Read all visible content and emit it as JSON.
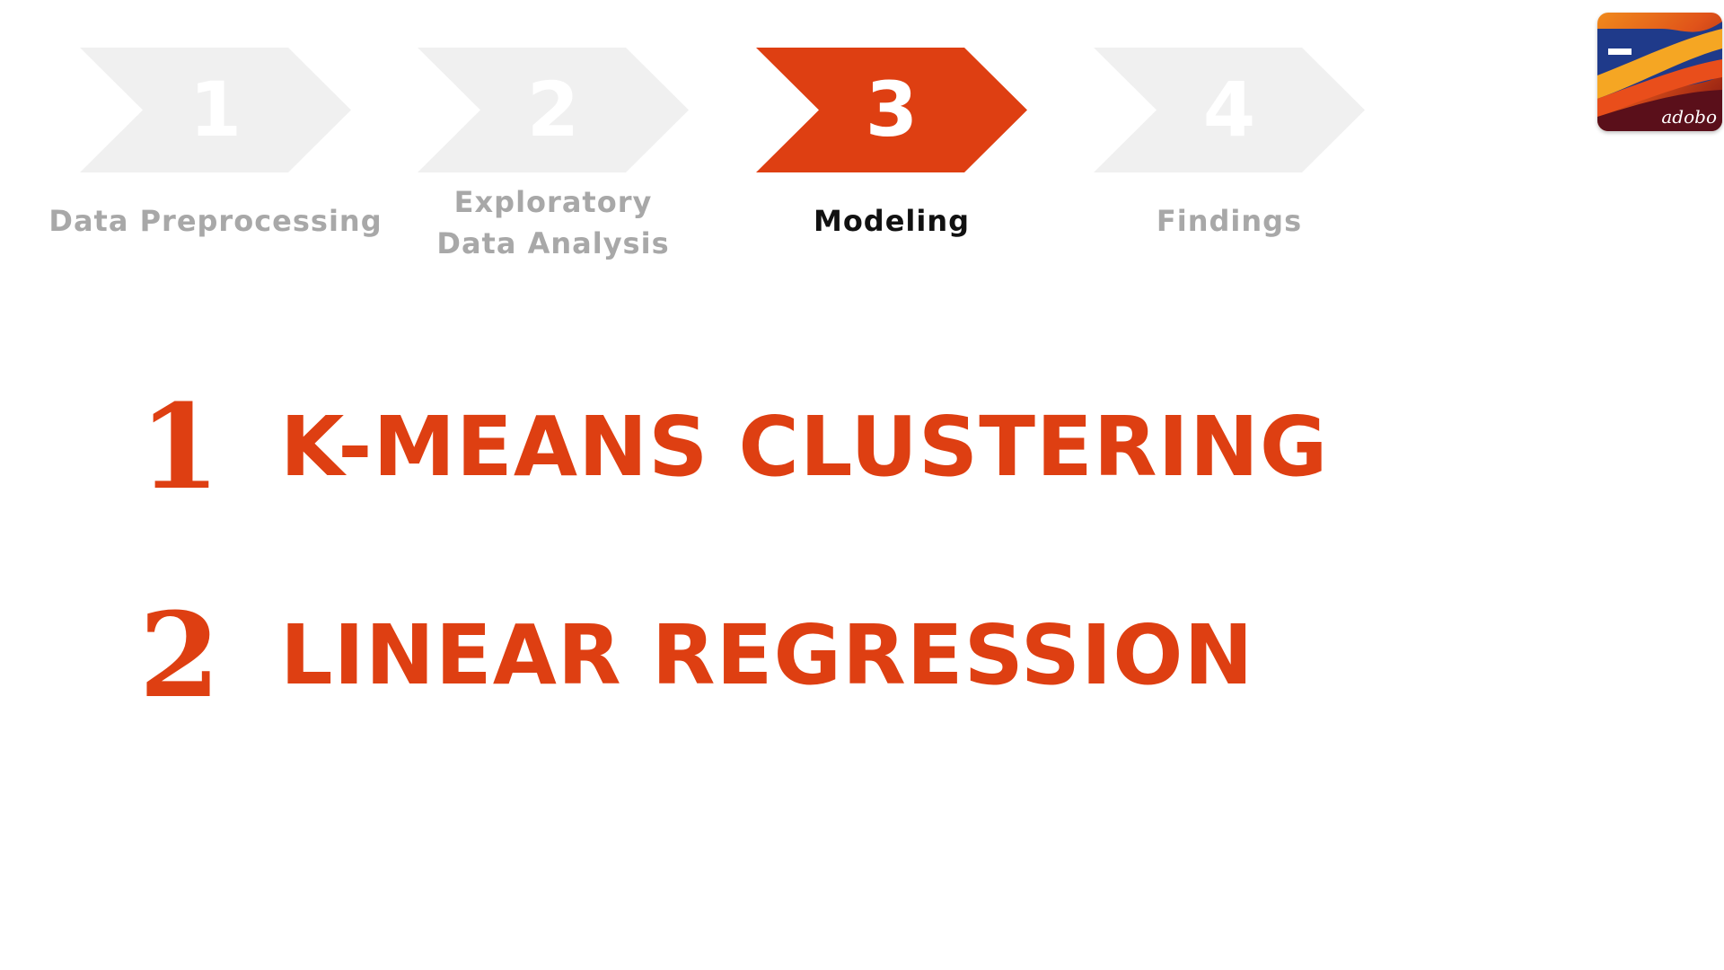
{
  "steps": [
    {
      "number": "1",
      "label_lines": [
        "Data Preprocessing"
      ],
      "active": false
    },
    {
      "number": "2",
      "label_lines": [
        "Exploratory",
        "Data Analysis"
      ],
      "active": false
    },
    {
      "number": "3",
      "label_lines": [
        "Modeling"
      ],
      "active": true
    },
    {
      "number": "4",
      "label_lines": [
        "Findings"
      ],
      "active": false
    }
  ],
  "logo": {
    "text": "adobo",
    "icon": "adobo-logo-icon"
  },
  "items": [
    {
      "number": "1",
      "title": "K-MEANS CLUSTERING"
    },
    {
      "number": "2",
      "title": "LINEAR REGRESSION"
    }
  ],
  "colors": {
    "accent": "#de3f12",
    "inactive_step": "#f0f0f0",
    "inactive_label": "#a8a8a8",
    "active_label": "#111111"
  }
}
